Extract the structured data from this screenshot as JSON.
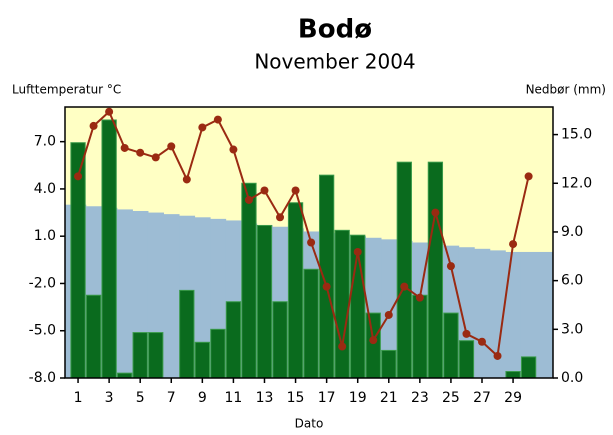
{
  "chart_data": {
    "type": "combo",
    "title": "Bodø",
    "subtitle": "November 2004",
    "y_label": "Lufttemperatur °C",
    "y2_label": "Nedbør (mm)",
    "x_label": "Dato",
    "x": [
      1,
      2,
      3,
      4,
      5,
      6,
      7,
      8,
      9,
      10,
      11,
      12,
      13,
      14,
      15,
      16,
      17,
      18,
      19,
      20,
      21,
      22,
      23,
      24,
      25,
      26,
      27,
      28,
      29,
      30
    ],
    "xlim": [
      0.16,
      31.57
    ],
    "xticks": [
      1,
      3,
      5,
      7,
      9,
      11,
      13,
      15,
      17,
      19,
      21,
      23,
      25,
      27,
      29
    ],
    "ylim": [
      -8,
      9.2
    ],
    "yticks": [
      {
        "value": -8,
        "label": "-8.0"
      },
      {
        "value": -5,
        "label": "-5.0"
      },
      {
        "value": -2,
        "label": "-2.0"
      },
      {
        "value": 1,
        "label": "1.0"
      },
      {
        "value": 4,
        "label": "4.0"
      },
      {
        "value": 7,
        "label": "7.0"
      }
    ],
    "y2lim": [
      0,
      16.7
    ],
    "y2ticks": [
      {
        "value": 0,
        "label": "0.0"
      },
      {
        "value": 3,
        "label": "3.0"
      },
      {
        "value": 6,
        "label": "6.0"
      },
      {
        "value": 9,
        "label": "9.0"
      },
      {
        "value": 12,
        "label": "12.0"
      },
      {
        "value": 15,
        "label": "15.0"
      }
    ],
    "background": "#ffffc4",
    "series": [
      {
        "type": "area",
        "color": "#9dbcd4",
        "axis": "y",
        "values": [
          3.0,
          2.9,
          2.8,
          2.7,
          2.6,
          2.5,
          2.4,
          2.3,
          2.2,
          2.1,
          2.0,
          1.8,
          1.7,
          1.6,
          1.5,
          1.3,
          1.2,
          1.1,
          1.0,
          0.9,
          0.8,
          0.7,
          0.6,
          0.5,
          0.4,
          0.3,
          0.2,
          0.1,
          0.0,
          0.0
        ]
      },
      {
        "type": "bar",
        "color": "#0a6b1e",
        "axis": "y2",
        "values": [
          14.5,
          5.1,
          15.9,
          0.3,
          2.8,
          2.8,
          0,
          5.4,
          2.2,
          3.0,
          4.7,
          12.0,
          9.4,
          4.7,
          10.8,
          6.7,
          12.5,
          9.1,
          8.8,
          4.0,
          1.7,
          13.3,
          5.1,
          13.3,
          4.0,
          2.3,
          0,
          0,
          0.4,
          1.3
        ]
      },
      {
        "type": "line",
        "color": "#9a2a12",
        "axis": "y",
        "values": [
          4.8,
          8.0,
          8.9,
          6.6,
          6.3,
          6.0,
          6.7,
          4.6,
          7.9,
          8.4,
          6.5,
          3.3,
          3.9,
          2.2,
          3.9,
          0.6,
          -2.2,
          -6.0,
          0.0,
          -5.6,
          -4.0,
          -2.2,
          -2.9,
          2.5,
          -0.9,
          -5.2,
          -5.7,
          -6.6,
          0.5,
          4.8
        ]
      }
    ]
  }
}
